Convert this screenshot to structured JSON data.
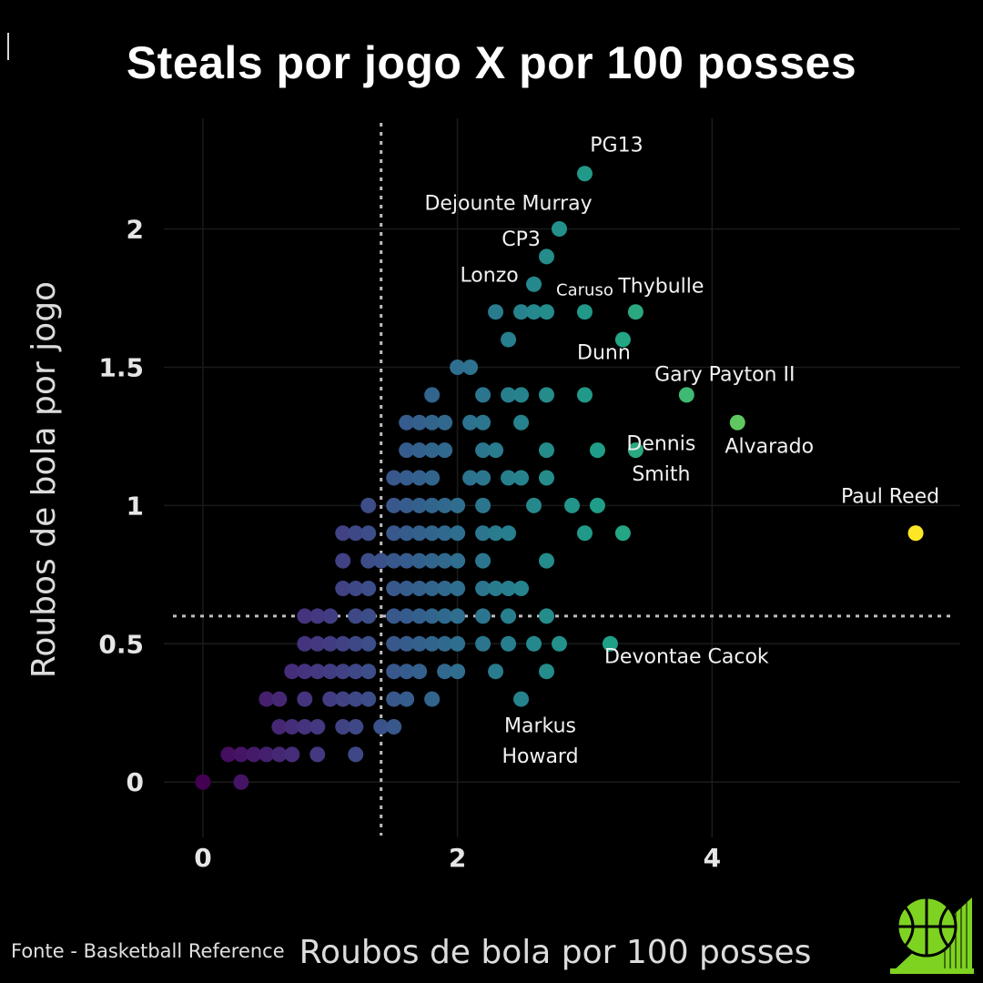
{
  "title": "Steals por jogo X por 100 posses",
  "source": "Fonte - Basketball Reference",
  "logo_icon": "basketball-logo-icon",
  "colors": {
    "background": "#000000",
    "text": "#ffffff",
    "grid": "#1b1b1b",
    "reference_line": "#bdbdbd",
    "palette": [
      "#440154",
      "#46337e",
      "#365c8d",
      "#277f8e",
      "#1fa187",
      "#4ac16d",
      "#a0da39",
      "#fde725"
    ],
    "logo_green": "#7ed321"
  },
  "chart_data": {
    "type": "scatter",
    "xlabel": "Roubos de bola por 100 posses",
    "ylabel": "Roubos de bola por jogo",
    "xlim": [
      -0.45,
      5.95
    ],
    "ylim": [
      -0.2,
      2.4
    ],
    "xticks": [
      0,
      2,
      4
    ],
    "yticks": [
      0,
      0.5,
      1,
      1.5,
      2
    ],
    "grid": true,
    "color_encoding": "x (viridis)",
    "reference_lines": {
      "x": 1.4,
      "y": 0.6
    },
    "points": [
      {
        "x": 0,
        "y": 0
      },
      {
        "x": 0.3,
        "y": 0
      },
      {
        "x": 0.2,
        "y": 0.1
      },
      {
        "x": 0.3,
        "y": 0.1
      },
      {
        "x": 0.4,
        "y": 0.1
      },
      {
        "x": 0.5,
        "y": 0.1
      },
      {
        "x": 0.6,
        "y": 0.1
      },
      {
        "x": 0.7,
        "y": 0.1
      },
      {
        "x": 0.9,
        "y": 0.1
      },
      {
        "x": 1.2,
        "y": 0.1
      },
      {
        "x": 0.6,
        "y": 0.2
      },
      {
        "x": 0.7,
        "y": 0.2
      },
      {
        "x": 0.8,
        "y": 0.2
      },
      {
        "x": 0.9,
        "y": 0.2
      },
      {
        "x": 1.1,
        "y": 0.2
      },
      {
        "x": 1.2,
        "y": 0.2
      },
      {
        "x": 1.4,
        "y": 0.2
      },
      {
        "x": 1.5,
        "y": 0.2
      },
      {
        "x": 0.5,
        "y": 0.3
      },
      {
        "x": 0.6,
        "y": 0.3
      },
      {
        "x": 0.8,
        "y": 0.3
      },
      {
        "x": 1.0,
        "y": 0.3
      },
      {
        "x": 1.1,
        "y": 0.3
      },
      {
        "x": 1.2,
        "y": 0.3
      },
      {
        "x": 1.3,
        "y": 0.3
      },
      {
        "x": 1.5,
        "y": 0.3
      },
      {
        "x": 1.6,
        "y": 0.3
      },
      {
        "x": 1.8,
        "y": 0.3
      },
      {
        "x": 2.5,
        "y": 0.3
      },
      {
        "x": 0.7,
        "y": 0.4
      },
      {
        "x": 0.8,
        "y": 0.4
      },
      {
        "x": 0.9,
        "y": 0.4
      },
      {
        "x": 1.0,
        "y": 0.4
      },
      {
        "x": 1.1,
        "y": 0.4
      },
      {
        "x": 1.2,
        "y": 0.4
      },
      {
        "x": 1.3,
        "y": 0.4
      },
      {
        "x": 1.5,
        "y": 0.4
      },
      {
        "x": 1.6,
        "y": 0.4
      },
      {
        "x": 1.7,
        "y": 0.4
      },
      {
        "x": 1.9,
        "y": 0.4
      },
      {
        "x": 2.0,
        "y": 0.4
      },
      {
        "x": 2.3,
        "y": 0.4
      },
      {
        "x": 2.7,
        "y": 0.4
      },
      {
        "x": 0.8,
        "y": 0.5
      },
      {
        "x": 0.9,
        "y": 0.5
      },
      {
        "x": 1.0,
        "y": 0.5
      },
      {
        "x": 1.1,
        "y": 0.5
      },
      {
        "x": 1.2,
        "y": 0.5
      },
      {
        "x": 1.3,
        "y": 0.5
      },
      {
        "x": 1.5,
        "y": 0.5
      },
      {
        "x": 1.6,
        "y": 0.5
      },
      {
        "x": 1.7,
        "y": 0.5
      },
      {
        "x": 1.8,
        "y": 0.5
      },
      {
        "x": 1.9,
        "y": 0.5
      },
      {
        "x": 2.0,
        "y": 0.5
      },
      {
        "x": 2.2,
        "y": 0.5
      },
      {
        "x": 2.4,
        "y": 0.5
      },
      {
        "x": 2.6,
        "y": 0.5
      },
      {
        "x": 2.8,
        "y": 0.5
      },
      {
        "x": 3.2,
        "y": 0.5
      },
      {
        "x": 0.8,
        "y": 0.6
      },
      {
        "x": 0.9,
        "y": 0.6
      },
      {
        "x": 1.0,
        "y": 0.6
      },
      {
        "x": 1.2,
        "y": 0.6
      },
      {
        "x": 1.3,
        "y": 0.6
      },
      {
        "x": 1.5,
        "y": 0.6
      },
      {
        "x": 1.6,
        "y": 0.6
      },
      {
        "x": 1.7,
        "y": 0.6
      },
      {
        "x": 1.8,
        "y": 0.6
      },
      {
        "x": 1.9,
        "y": 0.6
      },
      {
        "x": 2.0,
        "y": 0.6
      },
      {
        "x": 2.2,
        "y": 0.6
      },
      {
        "x": 2.4,
        "y": 0.6
      },
      {
        "x": 2.7,
        "y": 0.6
      },
      {
        "x": 1.1,
        "y": 0.7
      },
      {
        "x": 1.2,
        "y": 0.7
      },
      {
        "x": 1.3,
        "y": 0.7
      },
      {
        "x": 1.5,
        "y": 0.7
      },
      {
        "x": 1.6,
        "y": 0.7
      },
      {
        "x": 1.7,
        "y": 0.7
      },
      {
        "x": 1.8,
        "y": 0.7
      },
      {
        "x": 1.9,
        "y": 0.7
      },
      {
        "x": 2.0,
        "y": 0.7
      },
      {
        "x": 2.2,
        "y": 0.7
      },
      {
        "x": 2.3,
        "y": 0.7
      },
      {
        "x": 2.4,
        "y": 0.7
      },
      {
        "x": 2.5,
        "y": 0.7
      },
      {
        "x": 1.1,
        "y": 0.8
      },
      {
        "x": 1.3,
        "y": 0.8
      },
      {
        "x": 1.4,
        "y": 0.8
      },
      {
        "x": 1.5,
        "y": 0.8
      },
      {
        "x": 1.6,
        "y": 0.8
      },
      {
        "x": 1.7,
        "y": 0.8
      },
      {
        "x": 1.8,
        "y": 0.8
      },
      {
        "x": 1.9,
        "y": 0.8
      },
      {
        "x": 2.0,
        "y": 0.8
      },
      {
        "x": 2.2,
        "y": 0.8
      },
      {
        "x": 2.7,
        "y": 0.8
      },
      {
        "x": 1.1,
        "y": 0.9
      },
      {
        "x": 1.2,
        "y": 0.9
      },
      {
        "x": 1.3,
        "y": 0.9
      },
      {
        "x": 1.5,
        "y": 0.9
      },
      {
        "x": 1.6,
        "y": 0.9
      },
      {
        "x": 1.7,
        "y": 0.9
      },
      {
        "x": 1.8,
        "y": 0.9
      },
      {
        "x": 1.9,
        "y": 0.9
      },
      {
        "x": 2.0,
        "y": 0.9
      },
      {
        "x": 2.2,
        "y": 0.9
      },
      {
        "x": 2.3,
        "y": 0.9
      },
      {
        "x": 2.4,
        "y": 0.9
      },
      {
        "x": 3.0,
        "y": 0.9
      },
      {
        "x": 3.3,
        "y": 0.9
      },
      {
        "x": 1.3,
        "y": 1.0
      },
      {
        "x": 1.5,
        "y": 1.0
      },
      {
        "x": 1.6,
        "y": 1.0
      },
      {
        "x": 1.7,
        "y": 1.0
      },
      {
        "x": 1.8,
        "y": 1.0
      },
      {
        "x": 1.9,
        "y": 1.0
      },
      {
        "x": 2.0,
        "y": 1.0
      },
      {
        "x": 2.2,
        "y": 1.0
      },
      {
        "x": 2.6,
        "y": 1.0
      },
      {
        "x": 2.9,
        "y": 1.0
      },
      {
        "x": 3.1,
        "y": 1.0
      },
      {
        "x": 1.5,
        "y": 1.1
      },
      {
        "x": 1.6,
        "y": 1.1
      },
      {
        "x": 1.7,
        "y": 1.1
      },
      {
        "x": 1.8,
        "y": 1.1
      },
      {
        "x": 2.1,
        "y": 1.1
      },
      {
        "x": 2.2,
        "y": 1.1
      },
      {
        "x": 2.4,
        "y": 1.1
      },
      {
        "x": 2.5,
        "y": 1.1
      },
      {
        "x": 2.7,
        "y": 1.1
      },
      {
        "x": 1.6,
        "y": 1.2
      },
      {
        "x": 1.7,
        "y": 1.2
      },
      {
        "x": 1.8,
        "y": 1.2
      },
      {
        "x": 1.9,
        "y": 1.2
      },
      {
        "x": 2.2,
        "y": 1.2
      },
      {
        "x": 2.3,
        "y": 1.2
      },
      {
        "x": 2.7,
        "y": 1.2
      },
      {
        "x": 3.1,
        "y": 1.2
      },
      {
        "x": 3.4,
        "y": 1.2
      },
      {
        "x": 1.6,
        "y": 1.3
      },
      {
        "x": 1.7,
        "y": 1.3
      },
      {
        "x": 1.8,
        "y": 1.3
      },
      {
        "x": 1.9,
        "y": 1.3
      },
      {
        "x": 2.1,
        "y": 1.3
      },
      {
        "x": 2.2,
        "y": 1.3
      },
      {
        "x": 2.5,
        "y": 1.3
      },
      {
        "x": 1.8,
        "y": 1.4
      },
      {
        "x": 2.2,
        "y": 1.4
      },
      {
        "x": 2.4,
        "y": 1.4
      },
      {
        "x": 2.5,
        "y": 1.4
      },
      {
        "x": 2.7,
        "y": 1.4
      },
      {
        "x": 3.0,
        "y": 1.4
      },
      {
        "x": 3.8,
        "y": 1.4
      },
      {
        "x": 2.0,
        "y": 1.5
      },
      {
        "x": 2.1,
        "y": 1.5
      },
      {
        "x": 2.4,
        "y": 1.6
      },
      {
        "x": 3.3,
        "y": 1.6
      },
      {
        "x": 2.3,
        "y": 1.7
      },
      {
        "x": 2.5,
        "y": 1.7
      },
      {
        "x": 2.6,
        "y": 1.7
      },
      {
        "x": 2.7,
        "y": 1.7
      },
      {
        "x": 3.0,
        "y": 1.7
      },
      {
        "x": 3.4,
        "y": 1.7
      },
      {
        "x": 2.6,
        "y": 1.8
      },
      {
        "x": 2.7,
        "y": 1.9
      },
      {
        "x": 2.8,
        "y": 2.0
      },
      {
        "x": 3.0,
        "y": 2.2
      },
      {
        "x": 4.2,
        "y": 1.3
      },
      {
        "x": 5.6,
        "y": 0.9
      }
    ],
    "annotations": [
      {
        "text": "PG13",
        "x": 3.25,
        "y": 2.28
      },
      {
        "text": "Dejounte Murray",
        "x": 2.4,
        "y": 2.07
      },
      {
        "text": "CP3",
        "x": 2.5,
        "y": 1.94
      },
      {
        "text": "Lonzo",
        "x": 2.25,
        "y": 1.81
      },
      {
        "text": "Caruso",
        "x": 3.0,
        "y": 1.76
      },
      {
        "text": "Thybulle",
        "x": 3.6,
        "y": 1.77
      },
      {
        "text": "Dunn",
        "x": 3.15,
        "y": 1.53
      },
      {
        "text": "Gary Payton II",
        "x": 4.1,
        "y": 1.45
      },
      {
        "text": "Dennis",
        "x": 3.6,
        "y": 1.2
      },
      {
        "text": "Smith",
        "x": 3.6,
        "y": 1.09
      },
      {
        "text": "Alvarado",
        "x": 4.45,
        "y": 1.19
      },
      {
        "text": "Paul Reed",
        "x": 5.4,
        "y": 1.01
      },
      {
        "text": "Devontae Cacok",
        "x": 3.8,
        "y": 0.43
      },
      {
        "text": "Markus",
        "x": 2.65,
        "y": 0.18
      },
      {
        "text": "Howard",
        "x": 2.65,
        "y": 0.07
      }
    ]
  }
}
